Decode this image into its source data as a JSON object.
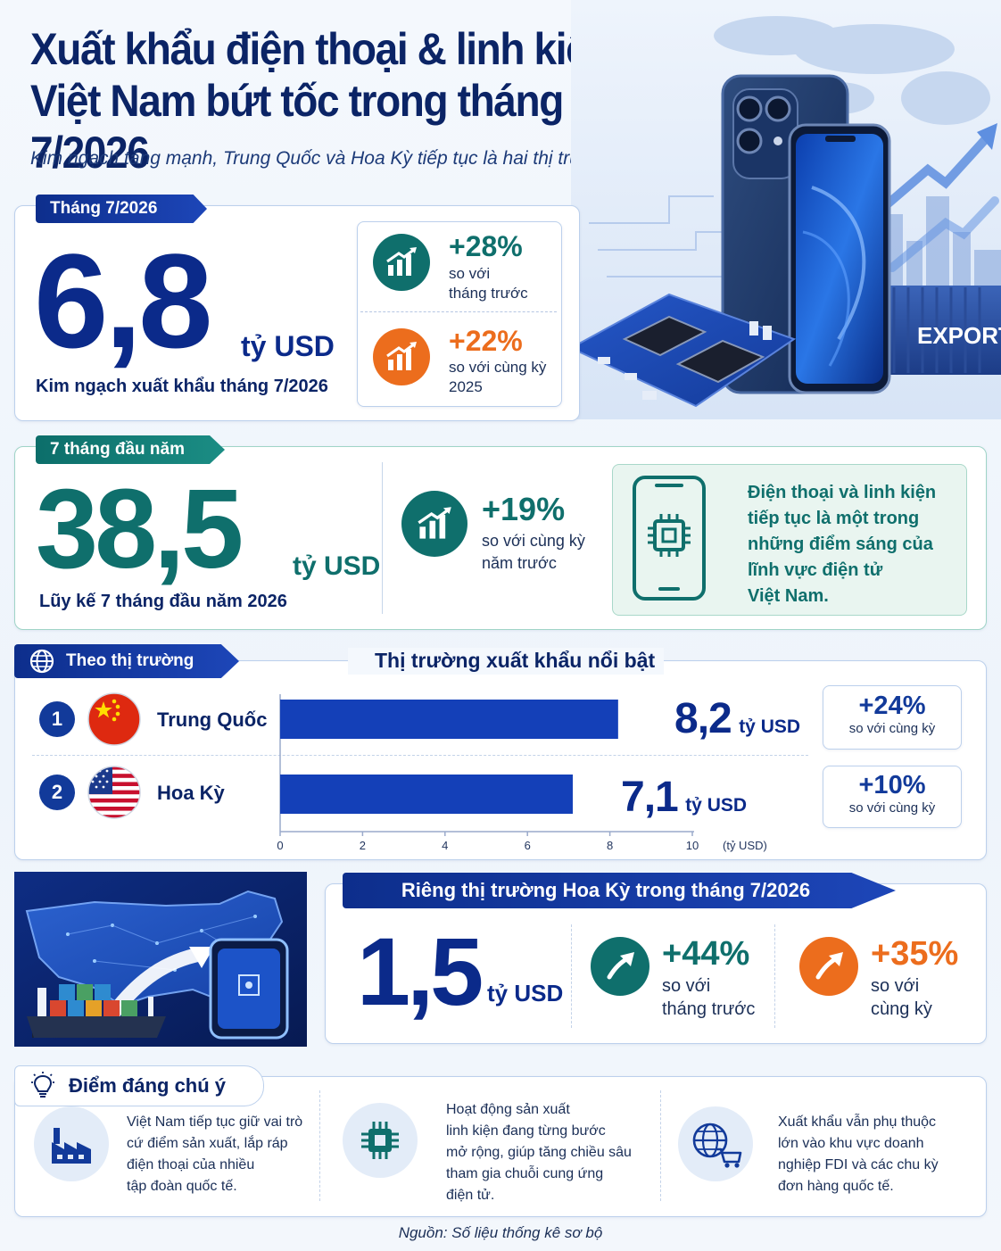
{
  "header": {
    "title_line1": "Xuất khẩu điện thoại & linh kiện",
    "title_line2": "Việt Nam bứt tốc trong tháng 7/2026",
    "subtitle": "Kim ngạch tăng mạnh, Trung Quốc và Hoa Kỳ tiếp tục là hai thị trường nổi bật",
    "export_label": "EXPORT"
  },
  "month": {
    "tag": "Tháng 7/2026",
    "value": "6,8",
    "unit": "tỷ USD",
    "caption": "Kim ngạch xuất khẩu tháng 7/2026",
    "change1": {
      "pct": "+28%",
      "line1": "so với",
      "line2": "tháng trước"
    },
    "change2": {
      "pct": "+22%",
      "line1": "so với cùng kỳ",
      "line2": "2025"
    }
  },
  "ytd": {
    "tag": "7 tháng đầu năm",
    "value": "38,5",
    "unit": "tỷ USD",
    "caption": "Lũy kế 7 tháng đầu năm 2026",
    "change": {
      "pct": "+19%",
      "line1": "so với cùng kỳ",
      "line2": "năm trước"
    },
    "note": {
      "l1": "Điện thoại và linh kiện",
      "l2": "tiếp tục là một trong",
      "l3": "những điểm sáng của",
      "l4": "lĩnh vực điện tử",
      "l5": "Việt Nam."
    }
  },
  "markets": {
    "tag": "Theo thị trường",
    "heading": "Thị trường xuất khẩu nổi bật",
    "axis_unit": "(tỷ USD)",
    "rows": [
      {
        "rank": "1",
        "name": "Trung Quốc",
        "value_label": "8,2",
        "unit": "tỷ USD",
        "pct": "+24%",
        "pct_text": "so với cùng kỳ"
      },
      {
        "rank": "2",
        "name": "Hoa Kỳ",
        "value_label": "7,1",
        "unit": "tỷ USD",
        "pct": "+10%",
        "pct_text": "so với cùng kỳ"
      }
    ],
    "ticks": [
      "0",
      "2",
      "4",
      "6",
      "8",
      "10"
    ]
  },
  "chart_data": {
    "type": "bar",
    "categories": [
      "Trung Quốc",
      "Hoa Kỳ"
    ],
    "values": [
      8.2,
      7.1
    ],
    "title": "Thị trường xuất khẩu nổi bật",
    "xlabel": "(tỷ USD)",
    "ylabel": "",
    "xlim": [
      0,
      10
    ],
    "orientation": "horizontal",
    "grid": false
  },
  "us": {
    "heading": "Riêng thị trường Hoa Kỳ trong tháng 7/2026",
    "value": "1,5",
    "unit": "tỷ USD",
    "change1": {
      "pct": "+44%",
      "line1": "so với",
      "line2": "tháng trước"
    },
    "change2": {
      "pct": "+35%",
      "line1": "so với",
      "line2": "cùng kỳ"
    }
  },
  "notes": {
    "tag": "Điểm đáng chú ý",
    "items": [
      {
        "l1": "Việt Nam tiếp tục giữ vai trò",
        "l2": "cứ điểm sản xuất, lắp ráp",
        "l3": "điện thoại của nhiều",
        "l4": "tập đoàn quốc tế.",
        "l5": ""
      },
      {
        "l1": "Hoạt động sản xuất",
        "l2": "linh kiện đang từng bước",
        "l3": "mở rộng, giúp tăng chiều sâu",
        "l4": "tham gia chuỗi cung ứng",
        "l5": "điện tử."
      },
      {
        "l1": "Xuất khẩu vẫn phụ thuộc",
        "l2": "lớn vào khu vực doanh",
        "l3": "nghiệp FDI và các chu kỳ",
        "l4": "đơn hàng quốc tế.",
        "l5": ""
      }
    ]
  },
  "source": "Nguồn: Số liệu thống kê sơ bộ",
  "colors": {
    "navy": "#0b2a8a",
    "teal": "#0f6f6c",
    "orange": "#ec6d1d",
    "bar": "#1440b8"
  }
}
